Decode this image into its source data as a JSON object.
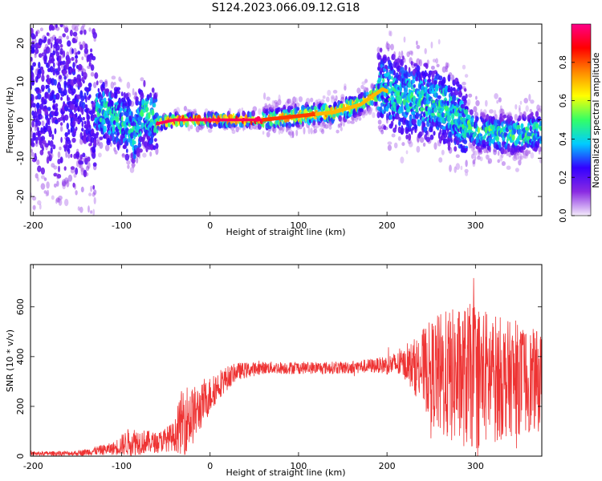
{
  "page_title": "S124.2023.066.09.12.G18",
  "chart_data": [
    {
      "type": "heatmap",
      "xlabel": "Height of straight line (km)",
      "ylabel": "Frequency (Hz)",
      "xlim": [
        -203,
        375
      ],
      "ylim": [
        -25,
        25
      ],
      "xticks": [
        -200,
        -100,
        0,
        100,
        200,
        300
      ],
      "yticks": [
        -20,
        -10,
        0,
        10,
        20
      ],
      "colorbar": {
        "label": "Normalized spectral amplitude",
        "range": [
          0,
          1
        ],
        "ticks": [
          "0.0",
          "0.2",
          "0.4",
          "0.6",
          "0.8"
        ],
        "colors": [
          "#f4ecfb",
          "#8a2be2",
          "#3300ff",
          "#00ccff",
          "#33ff66",
          "#ffff00",
          "#ff8800",
          "#ff0000",
          "#ff0088"
        ]
      },
      "ridge": [
        {
          "x": -200,
          "f": 8
        },
        {
          "x": -160,
          "f": 6
        },
        {
          "x": -130,
          "f": 3
        },
        {
          "x": -100,
          "f": 0
        },
        {
          "x": -85,
          "f": -4
        },
        {
          "x": -75,
          "f": 2
        },
        {
          "x": -60,
          "f": -1
        },
        {
          "x": -40,
          "f": 0
        },
        {
          "x": 0,
          "f": 0
        },
        {
          "x": 60,
          "f": 0
        },
        {
          "x": 100,
          "f": 1
        },
        {
          "x": 140,
          "f": 2
        },
        {
          "x": 170,
          "f": 4
        },
        {
          "x": 195,
          "f": 8
        },
        {
          "x": 215,
          "f": 6
        },
        {
          "x": 240,
          "f": 5
        },
        {
          "x": 270,
          "f": 3
        },
        {
          "x": 300,
          "f": -3
        },
        {
          "x": 340,
          "f": -4
        },
        {
          "x": 375,
          "f": -3
        }
      ]
    },
    {
      "type": "line",
      "xlabel": "Height of straight line (km)",
      "ylabel": "SNR (10 * v/v)",
      "xlim": [
        -203,
        375
      ],
      "ylim": [
        0,
        770
      ],
      "xticks": [
        -200,
        -100,
        0,
        100,
        200,
        300
      ],
      "yticks": [
        0,
        200,
        400,
        600
      ],
      "color": "#ee3333",
      "envelope": [
        {
          "x": -203,
          "mean": 10,
          "spread": 8
        },
        {
          "x": -150,
          "mean": 12,
          "spread": 10
        },
        {
          "x": -110,
          "mean": 30,
          "spread": 25
        },
        {
          "x": -90,
          "mean": 60,
          "spread": 60
        },
        {
          "x": -60,
          "mean": 55,
          "spread": 40
        },
        {
          "x": -40,
          "mean": 80,
          "spread": 60
        },
        {
          "x": -30,
          "mean": 150,
          "spread": 150
        },
        {
          "x": -20,
          "mean": 160,
          "spread": 120
        },
        {
          "x": -10,
          "mean": 200,
          "spread": 90
        },
        {
          "x": 10,
          "mean": 290,
          "spread": 60
        },
        {
          "x": 30,
          "mean": 340,
          "spread": 35
        },
        {
          "x": 60,
          "mean": 355,
          "spread": 25
        },
        {
          "x": 100,
          "mean": 355,
          "spread": 25
        },
        {
          "x": 150,
          "mean": 355,
          "spread": 25
        },
        {
          "x": 190,
          "mean": 365,
          "spread": 30
        },
        {
          "x": 220,
          "mean": 370,
          "spread": 60
        },
        {
          "x": 245,
          "mean": 350,
          "spread": 180
        },
        {
          "x": 260,
          "mean": 320,
          "spread": 260
        },
        {
          "x": 300,
          "mean": 320,
          "spread": 300
        },
        {
          "x": 340,
          "mean": 310,
          "spread": 230
        },
        {
          "x": 375,
          "mean": 300,
          "spread": 200
        }
      ]
    }
  ]
}
